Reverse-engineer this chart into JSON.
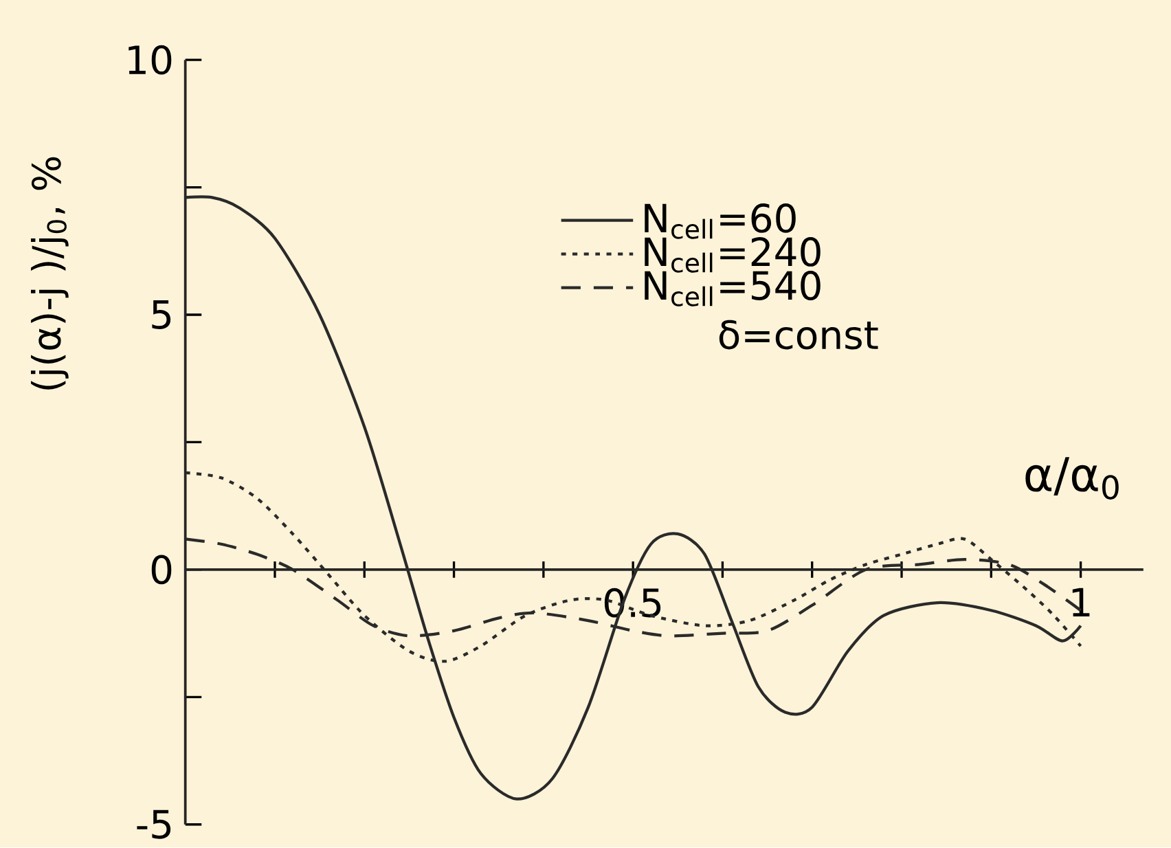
{
  "chart_data": {
    "type": "line",
    "xlabel": "α/α$_{0}$",
    "ylabel": "(j(α)-j )/j$_{0}$, %",
    "xlim": [
      0,
      1.07
    ],
    "ylim": [
      -5,
      10
    ],
    "xticks": [
      {
        "value": 0.1,
        "label": null
      },
      {
        "value": 0.2,
        "label": null
      },
      {
        "value": 0.3,
        "label": null
      },
      {
        "value": 0.4,
        "label": null
      },
      0.5,
      {
        "value": 0.6,
        "label": null
      },
      {
        "value": 0.7,
        "label": null
      },
      {
        "value": 0.8,
        "label": null
      },
      {
        "value": 0.9,
        "label": null
      },
      1
    ],
    "yticks": [
      -5,
      {
        "value": -2.5,
        "label": null
      },
      0,
      {
        "value": 2.5,
        "label": null
      },
      5,
      {
        "value": 7.5,
        "label": null
      },
      10
    ],
    "legend": "top",
    "grid": false,
    "annotations": [
      "δ=const"
    ],
    "series": [
      {
        "name": "N$_{cell}$=60",
        "color": "#2a2a2a",
        "line_style": "solid",
        "x": [
          0,
          0.03,
          0.06,
          0.1,
          0.15,
          0.2,
          0.24,
          0.27,
          0.3,
          0.33,
          0.37,
          0.41,
          0.45,
          0.49,
          0.52,
          0.55,
          0.58,
          0.61,
          0.64,
          0.67,
          0.7,
          0.74,
          0.78,
          0.84,
          0.9,
          0.95,
          0.98,
          1.0
        ],
        "values": [
          7.3,
          7.3,
          7.1,
          6.5,
          5.0,
          2.8,
          0.5,
          -1.3,
          -2.9,
          -4.0,
          -4.5,
          -4.1,
          -2.7,
          -0.6,
          0.5,
          0.7,
          0.3,
          -1.0,
          -2.3,
          -2.8,
          -2.7,
          -1.6,
          -0.9,
          -0.65,
          -0.8,
          -1.1,
          -1.4,
          -1.1
        ]
      },
      {
        "name": "N$_{cell}$=240",
        "color": "#2a2a2a",
        "line_style": "dotted",
        "x": [
          0,
          0.04,
          0.08,
          0.12,
          0.16,
          0.2,
          0.25,
          0.29,
          0.33,
          0.38,
          0.43,
          0.47,
          0.52,
          0.58,
          0.63,
          0.68,
          0.72,
          0.76,
          0.8,
          0.84,
          0.87,
          0.9,
          0.94,
          0.97,
          1.0
        ],
        "values": [
          1.9,
          1.8,
          1.4,
          0.7,
          -0.1,
          -0.9,
          -1.6,
          -1.8,
          -1.5,
          -0.9,
          -0.6,
          -0.6,
          -0.9,
          -1.1,
          -1.0,
          -0.6,
          -0.2,
          0.1,
          0.3,
          0.5,
          0.6,
          0.2,
          -0.4,
          -0.9,
          -1.5
        ]
      },
      {
        "name": "N$_{cell}$=540",
        "color": "#2a2a2a",
        "line_style": "dashed",
        "x": [
          0,
          0.04,
          0.08,
          0.12,
          0.17,
          0.21,
          0.25,
          0.3,
          0.35,
          0.39,
          0.45,
          0.5,
          0.54,
          0.6,
          0.65,
          0.7,
          0.76,
          0.82,
          0.87,
          0.92,
          0.96,
          1.0
        ],
        "values": [
          0.6,
          0.5,
          0.3,
          0.0,
          -0.6,
          -1.1,
          -1.3,
          -1.2,
          -0.95,
          -0.85,
          -1.0,
          -1.2,
          -1.3,
          -1.25,
          -1.2,
          -0.7,
          0.0,
          0.1,
          0.2,
          0.1,
          -0.3,
          -0.8
        ]
      }
    ]
  }
}
